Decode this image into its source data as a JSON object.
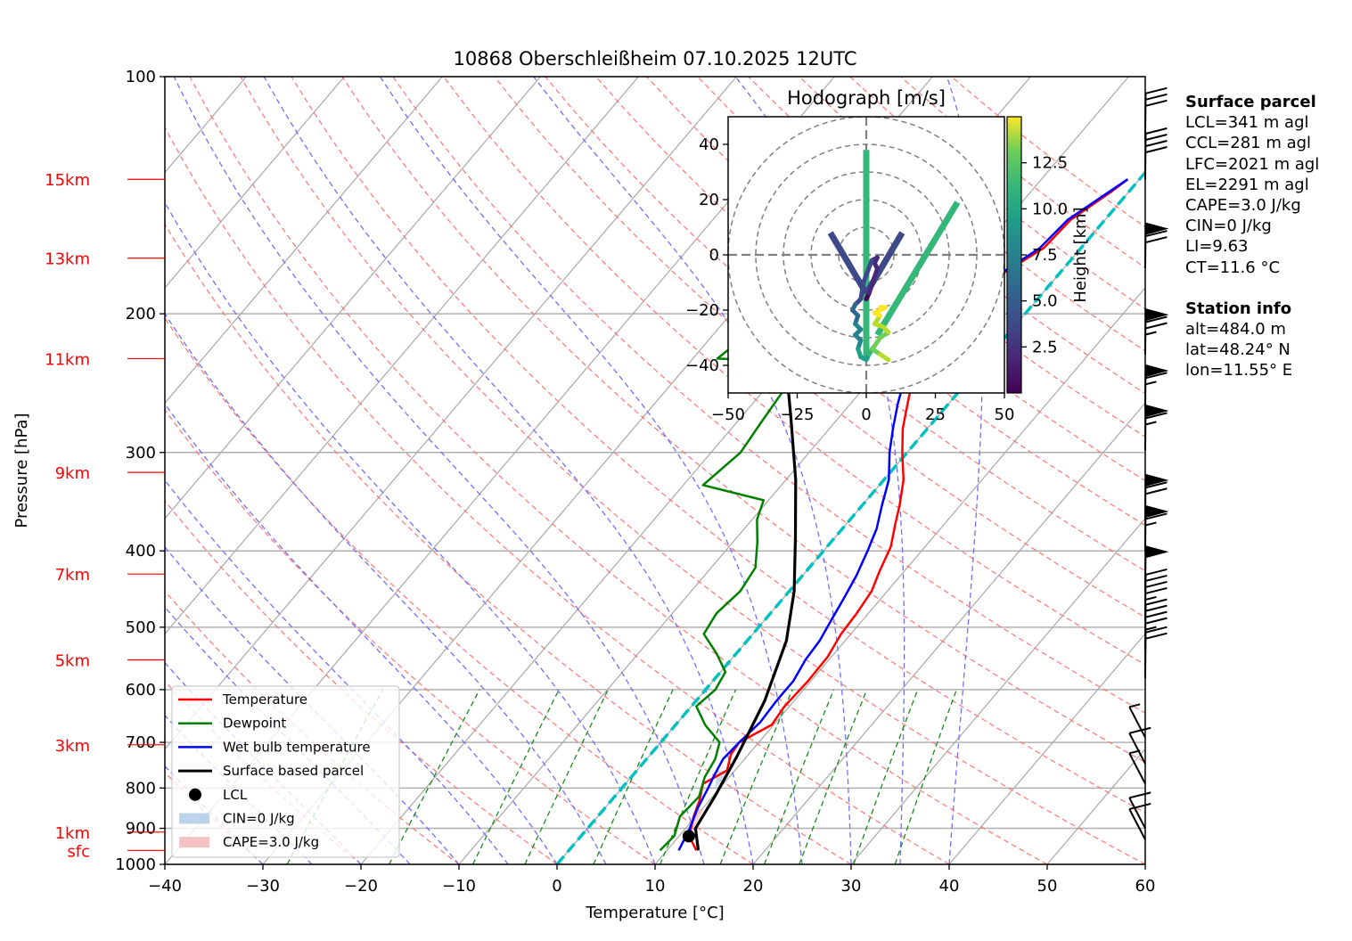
{
  "chart_data": {
    "type": "line",
    "subtype": "skew-T log-P diagram",
    "title": "10868 Oberschleißheim 07.10.2025 12UTC",
    "xlabel": "Temperature [°C]",
    "ylabel": "Pressure [hPa]",
    "xlim": [
      -40,
      60
    ],
    "ylim": [
      1000,
      100
    ],
    "x_ticks": [
      -40,
      -30,
      -20,
      -10,
      0,
      10,
      20,
      30,
      40,
      50,
      60
    ],
    "x_tick_labels": [
      "−40",
      "−30",
      "−20",
      "−10",
      "0",
      "10",
      "20",
      "30",
      "40",
      "50",
      "60"
    ],
    "y_ticks": [
      100,
      200,
      300,
      400,
      500,
      600,
      700,
      800,
      900,
      1000
    ],
    "y_tick_labels": [
      "100",
      "200",
      "300",
      "400",
      "500",
      "600",
      "700",
      "800",
      "900",
      "1000"
    ],
    "height_labels": [
      {
        "label": "15km",
        "p": 135
      },
      {
        "label": "13km",
        "p": 170
      },
      {
        "label": "11km",
        "p": 228
      },
      {
        "label": "9km",
        "p": 318
      },
      {
        "label": "7km",
        "p": 428
      },
      {
        "label": "5km",
        "p": 550
      },
      {
        "label": "3km",
        "p": 705
      },
      {
        "label": "1km",
        "p": 910
      },
      {
        "label": "sfc",
        "p": 960
      }
    ],
    "grid": true,
    "series": [
      {
        "name": "Temperature",
        "color": "#ff0000",
        "points": [
          [
            -1.2,
            135
          ],
          [
            -1.8,
            140
          ],
          [
            -3.5,
            152
          ],
          [
            -3.8,
            165
          ],
          [
            -5.8,
            178
          ],
          [
            -5.5,
            195
          ],
          [
            -5.0,
            202
          ],
          [
            -5.2,
            215
          ],
          [
            -6.8,
            220
          ],
          [
            -7.3,
            228
          ],
          [
            -6.0,
            240
          ],
          [
            -4.2,
            260
          ],
          [
            -2.5,
            280
          ],
          [
            -0.5,
            300
          ],
          [
            2.0,
            325
          ],
          [
            3.8,
            350
          ],
          [
            5.0,
            370
          ],
          [
            6.5,
            395
          ],
          [
            7.5,
            425
          ],
          [
            8.4,
            450
          ],
          [
            8.8,
            480
          ],
          [
            9.0,
            510
          ],
          [
            9.6,
            545
          ],
          [
            9.7,
            585
          ],
          [
            9.5,
            630
          ],
          [
            9.8,
            665
          ],
          [
            8.0,
            700
          ],
          [
            8.2,
            725
          ],
          [
            9.2,
            760
          ],
          [
            7.9,
            790
          ],
          [
            9.0,
            830
          ],
          [
            9.8,
            870
          ],
          [
            11.0,
            920
          ],
          [
            13.0,
            960
          ]
        ]
      },
      {
        "name": "Dewpoint",
        "color": "#008000",
        "points": [
          [
            -23.0,
            135
          ],
          [
            -24.5,
            150
          ],
          [
            -26.0,
            170
          ],
          [
            -26.2,
            180
          ],
          [
            -25.5,
            200
          ],
          [
            -26.5,
            212
          ],
          [
            -27.5,
            228
          ],
          [
            -20.5,
            230
          ],
          [
            -18.0,
            250
          ],
          [
            -17.5,
            275
          ],
          [
            -17.0,
            300
          ],
          [
            -18.0,
            330
          ],
          [
            -10.5,
            345
          ],
          [
            -9.5,
            365
          ],
          [
            -7.5,
            390
          ],
          [
            -5.5,
            420
          ],
          [
            -5.0,
            450
          ],
          [
            -5.5,
            480
          ],
          [
            -5.0,
            510
          ],
          [
            -2.0,
            540
          ],
          [
            0.5,
            570
          ],
          [
            1.0,
            600
          ],
          [
            0.5,
            630
          ],
          [
            3.0,
            665
          ],
          [
            6.0,
            700
          ],
          [
            7.0,
            735
          ],
          [
            7.5,
            775
          ],
          [
            8.6,
            820
          ],
          [
            8.4,
            870
          ],
          [
            9.5,
            920
          ],
          [
            9.3,
            960
          ]
        ]
      },
      {
        "name": "Wet bulb temperature",
        "color": "#0000ff",
        "points": [
          [
            -1.2,
            135
          ],
          [
            -2.0,
            140
          ],
          [
            -3.8,
            152
          ],
          [
            -4.2,
            165
          ],
          [
            -6.0,
            178
          ],
          [
            -5.8,
            195
          ],
          [
            -5.5,
            202
          ],
          [
            -5.8,
            215
          ],
          [
            -7.5,
            220
          ],
          [
            -8.0,
            228
          ],
          [
            -6.8,
            240
          ],
          [
            -5.2,
            260
          ],
          [
            -3.5,
            280
          ],
          [
            -1.8,
            300
          ],
          [
            0.5,
            325
          ],
          [
            2.0,
            350
          ],
          [
            3.5,
            375
          ],
          [
            4.5,
            400
          ],
          [
            5.5,
            430
          ],
          [
            6.2,
            460
          ],
          [
            6.8,
            490
          ],
          [
            7.4,
            520
          ],
          [
            7.6,
            550
          ],
          [
            8.2,
            585
          ],
          [
            8.2,
            620
          ],
          [
            8.4,
            660
          ],
          [
            8.0,
            700
          ],
          [
            7.8,
            735
          ],
          [
            8.3,
            770
          ],
          [
            8.8,
            800
          ],
          [
            9.5,
            850
          ],
          [
            10.5,
            905
          ],
          [
            11.2,
            960
          ]
        ]
      },
      {
        "name": "Surface based parcel",
        "color": "#000000",
        "points": [
          [
            -40,
            130
          ],
          [
            -34,
            150
          ],
          [
            -27,
            185
          ],
          [
            -21,
            225
          ],
          [
            -15,
            270
          ],
          [
            -9,
            325
          ],
          [
            -4,
            385
          ],
          [
            0.5,
            450
          ],
          [
            4,
            520
          ],
          [
            7,
            620
          ],
          [
            9,
            730
          ],
          [
            10.2,
            820
          ],
          [
            11.0,
            900
          ],
          [
            13.2,
            960
          ]
        ]
      }
    ],
    "markers": [
      {
        "name": "LCL",
        "x": 11.0,
        "p": 921
      }
    ],
    "legend": {
      "position": "lower-left",
      "entries": [
        {
          "label": "Temperature",
          "kind": "line",
          "color": "#ff0000"
        },
        {
          "label": "Dewpoint",
          "kind": "line",
          "color": "#008000"
        },
        {
          "label": "Wet bulb temperature",
          "kind": "line",
          "color": "#0000ff"
        },
        {
          "label": "Surface based parcel",
          "kind": "line",
          "color": "#000000"
        },
        {
          "label": "LCL",
          "kind": "marker",
          "color": "#000000"
        },
        {
          "label": "CIN=0 J/kg",
          "kind": "patch",
          "color": "#bcd4ea"
        },
        {
          "label": "CAPE=3.0 J/kg",
          "kind": "patch",
          "color": "#f4c2c2"
        }
      ]
    },
    "zero_isotherm_color": "#00c0c0",
    "wind_barbs": [
      {
        "p": 120,
        "speed_kt": 30
      },
      {
        "p": 135,
        "speed_kt": 40
      },
      {
        "p": 175,
        "speed_kt": 70
      },
      {
        "p": 225,
        "speed_kt": 75
      },
      {
        "p": 265,
        "speed_kt": 65
      },
      {
        "p": 298,
        "speed_kt": 65
      },
      {
        "p": 365,
        "speed_kt": 70
      },
      {
        "p": 400,
        "speed_kt": 65
      },
      {
        "p": 450,
        "speed_kt": 50
      },
      {
        "p": 490,
        "speed_kt": 45
      },
      {
        "p": 535,
        "speed_kt": 45
      },
      {
        "p": 580,
        "speed_kt": 20
      },
      {
        "p": 690,
        "speed_kt": 5
      },
      {
        "p": 745,
        "speed_kt": 10
      },
      {
        "p": 790,
        "speed_kt": 5
      },
      {
        "p": 900,
        "speed_kt": 10
      },
      {
        "p": 930,
        "speed_kt": 10
      }
    ],
    "hodograph": {
      "title": "Hodograph [m/s]",
      "xlim": [
        -50,
        50
      ],
      "ylim": [
        -50,
        50
      ],
      "x_ticks": [
        -50,
        -25,
        0,
        25,
        50
      ],
      "x_tick_labels": [
        "−50",
        "−25",
        "0",
        "25",
        "50"
      ],
      "y_ticks": [
        -40,
        -20,
        0,
        20,
        40
      ],
      "y_tick_labels": [
        "−40",
        "−20",
        "0",
        "20",
        "40"
      ],
      "rings": [
        10,
        20,
        30,
        40,
        50
      ],
      "colorbar": {
        "label": "Height [km]",
        "range": [
          0,
          15
        ],
        "ticks": [
          2.5,
          5.0,
          7.5,
          10.0,
          12.5
        ],
        "tick_labels": [
          "2.5",
          "5.0",
          "7.5",
          "10.0",
          "12.5"
        ],
        "colormap": "viridis"
      },
      "trace": [
        [
          0,
          -16,
          1.0
        ],
        [
          1,
          -14,
          1.3
        ],
        [
          2,
          -11,
          1.6
        ],
        [
          3,
          -8,
          1.9
        ],
        [
          4,
          -5,
          2.1
        ],
        [
          3,
          -3,
          2.3
        ],
        [
          4,
          -1,
          2.5
        ],
        [
          2,
          -2,
          2.7
        ],
        [
          -1,
          -10,
          3.2
        ],
        [
          -2,
          -16,
          3.8
        ],
        [
          -4,
          -18,
          4.3
        ],
        [
          -5,
          -20,
          4.8
        ],
        [
          -3,
          -22,
          5.2
        ],
        [
          -4,
          -25,
          5.6
        ],
        [
          -2,
          -27,
          6.0
        ],
        [
          -4,
          -29,
          6.4
        ],
        [
          -2,
          -31,
          6.8
        ],
        [
          -3,
          -34,
          7.2
        ],
        [
          -2,
          -37,
          7.6
        ],
        [
          0,
          -38,
          8.0
        ],
        [
          1,
          -36,
          8.5
        ],
        [
          3,
          -33,
          9.5
        ],
        [
          5,
          -30,
          10.5
        ],
        [
          8,
          -28,
          11.5
        ],
        [
          6,
          -26,
          12.0
        ],
        [
          3,
          -25,
          12.5
        ],
        [
          5,
          -22,
          13.0
        ],
        [
          3,
          -21,
          13.5
        ],
        [
          7,
          -19,
          14.0
        ],
        [
          5,
          -19,
          14.5
        ],
        [
          2,
          -34,
          11.0
        ],
        [
          5,
          -36,
          11.5
        ],
        [
          8,
          -38,
          12.0
        ]
      ],
      "stick_segments": [
        {
          "from": [
            0,
            -38
          ],
          "to": [
            0,
            38
          ],
          "height_km": 9.5
        },
        {
          "from": [
            4,
            -29
          ],
          "to": [
            33,
            19
          ],
          "height_km": 9.5
        },
        {
          "from": [
            0,
            -14
          ],
          "to": [
            -13,
            8
          ],
          "height_km": 3.0
        },
        {
          "from": [
            0,
            -14
          ],
          "to": [
            13,
            8
          ],
          "height_km": 3.0
        }
      ]
    }
  },
  "info_panel": {
    "surface_parcel_heading": "Surface parcel",
    "surface_parcel": [
      "LCL=341 m agl",
      "CCL=281 m agl",
      "LFC=2021 m agl",
      "EL=2291 m agl",
      "CAPE=3.0 J/kg",
      "CIN=0 J/kg",
      "LI=9.63",
      "CT=11.6 °C"
    ],
    "station_heading": "Station info",
    "station": [
      "alt=484.0 m",
      "lat=48.24° N",
      "lon=11.55° E"
    ]
  }
}
